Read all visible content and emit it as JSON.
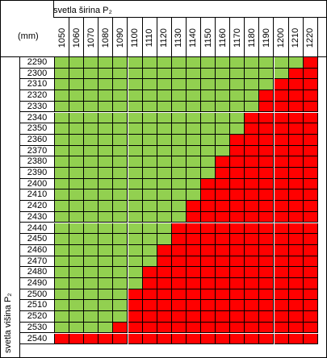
{
  "table": {
    "header_title": "svetla širina P₂",
    "unit_label": "(mm)",
    "side_title": "svetla višina P₂",
    "colors": {
      "allowed": "#92d050",
      "not_allowed": "#ff0000"
    },
    "widths": [
      "1050",
      "1060",
      "1070",
      "1080",
      "1090",
      "1100",
      "1110",
      "1120",
      "1130",
      "1140",
      "1150",
      "1160",
      "1170",
      "1180",
      "1190",
      "1200",
      "1210",
      "1220"
    ],
    "heights": [
      "2290",
      "2300",
      "2310",
      "2320",
      "2330",
      "2340",
      "2350",
      "2360",
      "2370",
      "2380",
      "2390",
      "2400",
      "2410",
      "2420",
      "2430",
      "2440",
      "2450",
      "2460",
      "2470",
      "2480",
      "2490",
      "2500",
      "2510",
      "2520",
      "2530",
      "2540"
    ],
    "green_counts": [
      17,
      16,
      15,
      14,
      14,
      13,
      13,
      12,
      12,
      11,
      11,
      10,
      10,
      9,
      9,
      8,
      8,
      7,
      7,
      6,
      6,
      5,
      5,
      5,
      4,
      0
    ]
  }
}
